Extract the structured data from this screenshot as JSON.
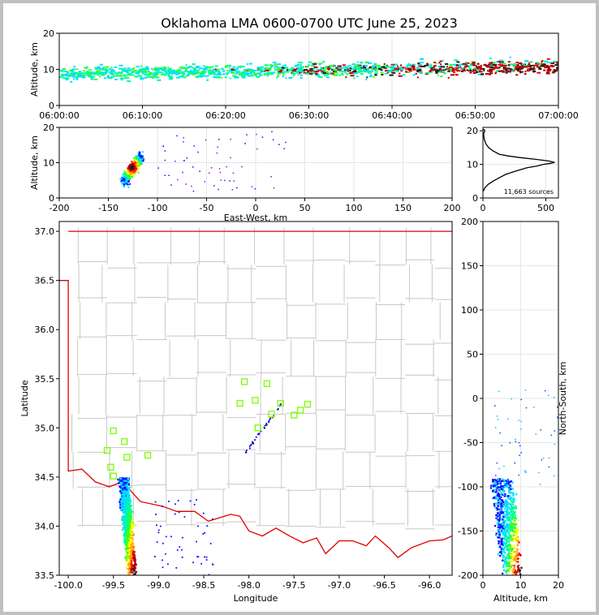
{
  "title": "Oklahoma LMA 0600-0700 UTC June 25, 2023",
  "colors": {
    "frame": "#c0c0c0",
    "state_border": "#e00000",
    "county_lines": "#c8c8c8",
    "station": "#7cfc00",
    "histogram_line": "#000000",
    "grid": "#e6e6e6"
  },
  "chart_data": [
    {
      "type": "scatter",
      "panel": "time-altitude",
      "ylabel": "Altitude, km",
      "ylim": [
        0,
        20
      ],
      "yticks": [
        "0",
        "10",
        "20"
      ],
      "xticks": [
        "06:00:00",
        "06:10:00",
        "06:20:00",
        "06:30:00",
        "06:40:00",
        "06:50:00",
        "07:00:00"
      ]
    },
    {
      "type": "scatter",
      "panel": "east-west-altitude",
      "xlabel": "East-West, km",
      "ylabel": "Altitude, km",
      "xlim": [
        -200,
        200
      ],
      "ylim": [
        0,
        20
      ],
      "xticks": [
        "-200",
        "-150",
        "-100",
        "-50",
        "0",
        "50",
        "100",
        "150",
        "200"
      ],
      "yticks": [
        "0",
        "10",
        "20"
      ]
    },
    {
      "type": "line",
      "panel": "altitude-histogram",
      "annotation": "11,663 sources",
      "xlim": [
        0,
        600
      ],
      "ylim": [
        0,
        21
      ],
      "xticks": [
        "0",
        "500"
      ],
      "yticks": [
        "0",
        "10",
        "20"
      ],
      "x": [
        2,
        15,
        40,
        80,
        130,
        180,
        260,
        350,
        430,
        480,
        540,
        570,
        520,
        420,
        300,
        200,
        130,
        80,
        45,
        25,
        14,
        8,
        5,
        10,
        14,
        5
      ],
      "y": [
        2,
        3,
        4,
        5,
        6,
        7,
        8,
        9,
        9.5,
        10,
        10.3,
        10.6,
        11,
        11.5,
        12,
        12.5,
        13,
        14,
        15,
        16,
        17,
        18,
        19,
        19.5,
        20,
        20.5
      ]
    },
    {
      "type": "scatter",
      "panel": "plan-view",
      "xlabel": "Longitude",
      "ylabel": "Latitude",
      "xlim": [
        -100.1,
        -95.75
      ],
      "ylim": [
        33.5,
        37.1
      ],
      "xticks": [
        "-100.0",
        "-99.5",
        "-99.0",
        "-98.5",
        "-98.0",
        "-97.5",
        "-97.0",
        "-96.5",
        "-96.0"
      ],
      "yticks": [
        "33.5",
        "34.0",
        "34.5",
        "35.0",
        "35.5",
        "36.0",
        "36.5",
        "37.0"
      ],
      "stations": [
        [
          -98.05,
          35.47
        ],
        [
          -97.8,
          35.45
        ],
        [
          -97.93,
          35.28
        ],
        [
          -98.1,
          35.25
        ],
        [
          -97.65,
          35.25
        ],
        [
          -97.35,
          35.24
        ],
        [
          -97.75,
          35.14
        ],
        [
          -97.5,
          35.13
        ],
        [
          -97.43,
          35.18
        ],
        [
          -97.9,
          35.0
        ],
        [
          -99.5,
          34.97
        ],
        [
          -99.38,
          34.86
        ],
        [
          -99.57,
          34.77
        ],
        [
          -99.35,
          34.7
        ],
        [
          -99.12,
          34.72
        ],
        [
          -99.53,
          34.6
        ],
        [
          -99.5,
          34.51
        ]
      ]
    },
    {
      "type": "scatter",
      "panel": "altitude-north-south",
      "xlabel": "Altitude, km",
      "ylabel": "North-South, km",
      "xlim": [
        0,
        20
      ],
      "ylim": [
        -200,
        200
      ],
      "xticks": [
        "0",
        "10",
        "20"
      ],
      "yticks": [
        "-200",
        "-150",
        "-100",
        "-50",
        "0",
        "50",
        "100",
        "150",
        "200"
      ]
    }
  ]
}
